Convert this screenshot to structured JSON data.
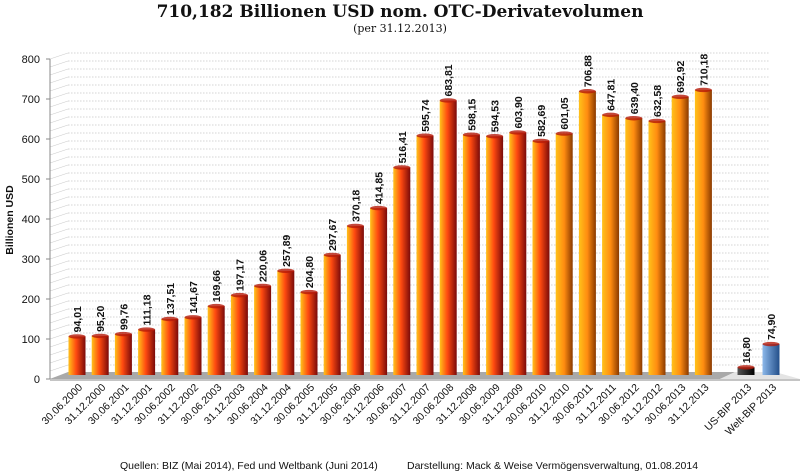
{
  "chart_data": {
    "type": "bar",
    "title": "710,182 Billionen USD nom. OTC-Derivatevolumen",
    "subtitle": "(per 31.12.2013)",
    "ylabel": "Billionen  USD",
    "xlabel": "",
    "ylim": [
      0,
      800
    ],
    "yticks": [
      0,
      100,
      200,
      300,
      400,
      500,
      600,
      700,
      800
    ],
    "grid": true,
    "categories": [
      "30.06.2000",
      "31.12.2000",
      "30.06.2001",
      "31.12.2001",
      "30.06.2002",
      "31.12.2002",
      "30.06.2003",
      "31.12.2003",
      "30.06.2004",
      "31.12.2004",
      "30.06.2005",
      "31.12.2005",
      "30.06.2006",
      "31.12.2006",
      "30.06.2007",
      "31.12.2007",
      "30.06.2008",
      "31.12.2008",
      "30.06.2009",
      "31.12.2009",
      "30.06.2010",
      "31.12.2010",
      "30.06.2011",
      "31.12.2011",
      "30.06.2012",
      "31.12.2012",
      "30.06.2013",
      "31.12.2013"
    ],
    "values": [
      94.01,
      95.2,
      99.76,
      111.18,
      137.51,
      141.67,
      169.66,
      197.17,
      220.06,
      257.89,
      204.8,
      297.67,
      370.18,
      414.85,
      516.41,
      595.74,
      683.81,
      598.15,
      594.53,
      603.9,
      582.69,
      601.05,
      706.88,
      647.81,
      639.4,
      632.58,
      692.92,
      710.18
    ],
    "labels": [
      "94,01",
      "95,20",
      "99,76",
      "111,18",
      "137,51",
      "141,67",
      "169,66",
      "197,17",
      "220,06",
      "257,89",
      "204,80",
      "297,67",
      "370,18",
      "414,85",
      "516,41",
      "595,74",
      "683,81",
      "598,15",
      "594,53",
      "603,90",
      "582,69",
      "601,05",
      "706,88",
      "647,81",
      "639,40",
      "632,58",
      "692,92",
      "710,18"
    ],
    "comparison": {
      "categories": [
        "US-BIP 2013",
        "Welt-BIP 2013"
      ],
      "values": [
        16.8,
        74.9
      ],
      "labels": [
        "16,80",
        "74,90"
      ],
      "colors": [
        "#1a1a1a",
        "#3b78c4"
      ]
    },
    "colors": {
      "bar_light": "#ffc21a",
      "bar_mid": "#ff4a10",
      "bar_dark": "#7a0a0a",
      "floor": "#a9a9a9"
    }
  },
  "footer": {
    "sources": "Quellen: BIZ (Mai 2014), Fed und Weltbank (Juni 2014)",
    "credit": "Darstellung: Mack & Weise Vermögensverwaltung, 01.08.2014"
  }
}
